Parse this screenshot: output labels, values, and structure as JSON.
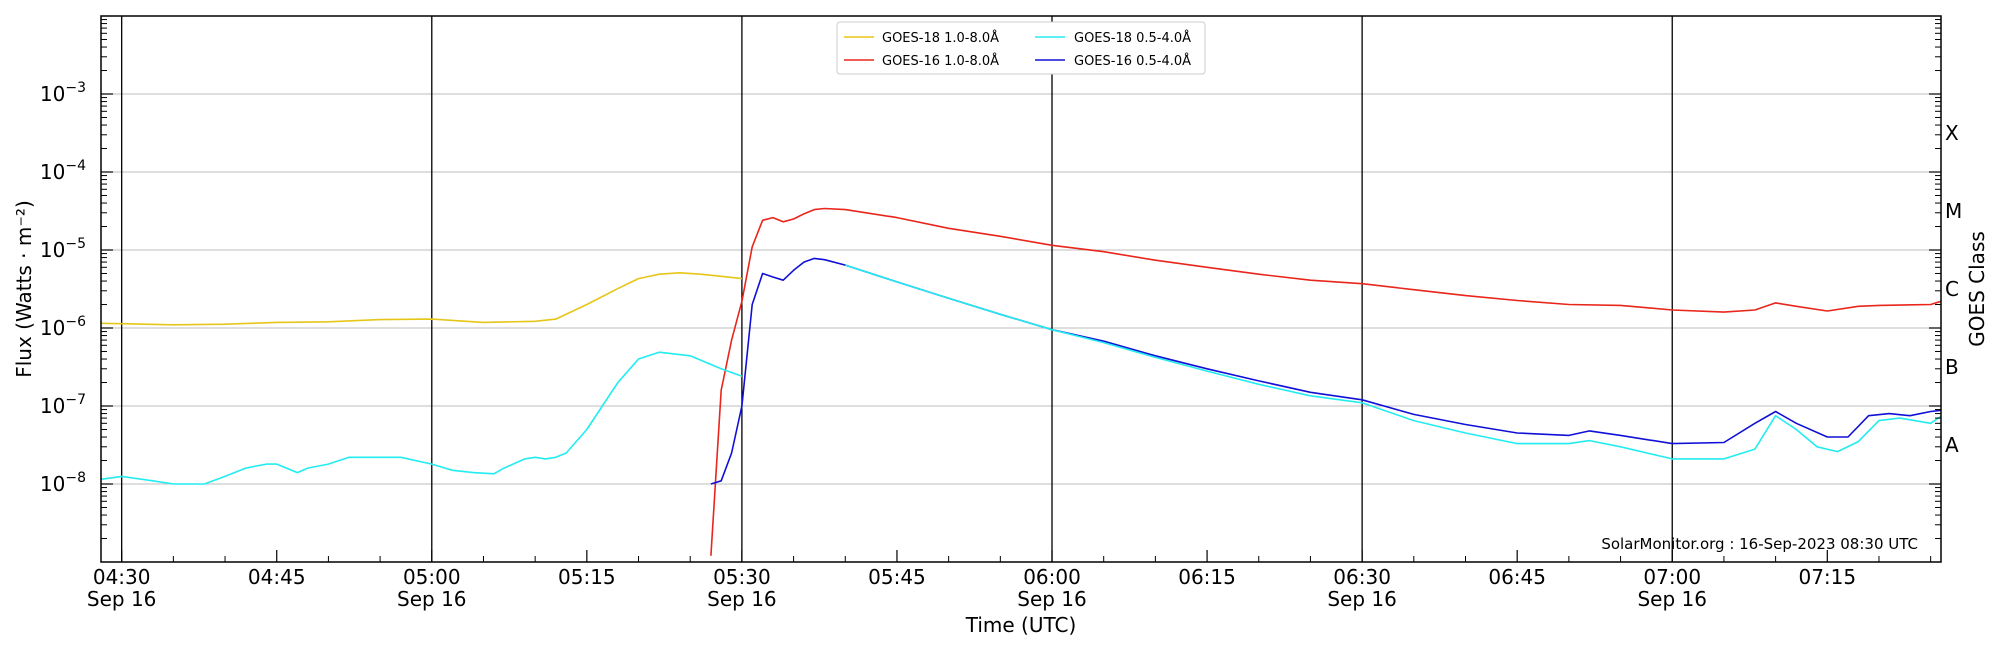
{
  "chart_data": {
    "type": "line",
    "title": "",
    "xlabel": "Time (UTC)",
    "ylabel": "Flux (Watts · m⁻²)",
    "ylabel_right": "GOES Class",
    "y_scale": "log",
    "ylim": [
      1e-09,
      0.01
    ],
    "xlim": [
      "2023-09-16T04:28",
      "2023-09-16T07:26"
    ],
    "grid": "horizontal at decades, vertical at half hours",
    "legend_position": "top-center",
    "credit": "SolarMonitor.org : 16-Sep-2023 08:30 UTC",
    "x_ticks": [
      {
        "time": "04:30",
        "date": "Sep 16"
      },
      {
        "time": "04:45",
        "date": ""
      },
      {
        "time": "05:00",
        "date": "Sep 16"
      },
      {
        "time": "05:15",
        "date": ""
      },
      {
        "time": "05:30",
        "date": "Sep 16"
      },
      {
        "time": "05:45",
        "date": ""
      },
      {
        "time": "06:00",
        "date": "Sep 16"
      },
      {
        "time": "06:15",
        "date": ""
      },
      {
        "time": "06:30",
        "date": "Sep 16"
      },
      {
        "time": "06:45",
        "date": ""
      },
      {
        "time": "07:00",
        "date": "Sep 16"
      },
      {
        "time": "07:15",
        "date": ""
      }
    ],
    "y_ticks": [
      {
        "value": 1e-08,
        "base": "10",
        "exp": "−8"
      },
      {
        "value": 1e-07,
        "base": "10",
        "exp": "−7"
      },
      {
        "value": 1e-06,
        "base": "10",
        "exp": "−6"
      },
      {
        "value": 1e-05,
        "base": "10",
        "exp": "−5"
      },
      {
        "value": 0.0001,
        "base": "10",
        "exp": "−4"
      },
      {
        "value": 0.001,
        "base": "10",
        "exp": "−3"
      }
    ],
    "goes_classes": [
      {
        "label": "A",
        "value": 3.16e-08
      },
      {
        "label": "B",
        "value": 3.16e-07
      },
      {
        "label": "C",
        "value": 3.16e-06
      },
      {
        "label": "M",
        "value": 3.16e-05
      },
      {
        "label": "X",
        "value": 0.000316
      }
    ],
    "series": [
      {
        "name": "GOES-18 1.0-8.0Å",
        "color": "#e6c619",
        "x": [
          "04:28",
          "04:35",
          "04:40",
          "04:45",
          "04:50",
          "04:55",
          "05:00",
          "05:05",
          "05:10",
          "05:12",
          "05:15",
          "05:18",
          "05:20",
          "05:22",
          "05:24",
          "05:26",
          "05:28",
          "05:30"
        ],
        "y": [
          1.15e-06,
          1.1e-06,
          1.12e-06,
          1.18e-06,
          1.2e-06,
          1.28e-06,
          1.3e-06,
          1.18e-06,
          1.22e-06,
          1.3e-06,
          2e-06,
          3.2e-06,
          4.3e-06,
          4.9e-06,
          5.1e-06,
          4.9e-06,
          4.6e-06,
          4.3e-06
        ]
      },
      {
        "name": "GOES-16 1.0-8.0Å",
        "color": "#e8261b",
        "x": [
          "05:27",
          "05:28",
          "05:29",
          "05:30",
          "05:31",
          "05:32",
          "05:33",
          "05:34",
          "05:35",
          "05:36",
          "05:37",
          "05:38",
          "05:40",
          "05:45",
          "05:50",
          "05:55",
          "06:00",
          "06:05",
          "06:10",
          "06:15",
          "06:20",
          "06:25",
          "06:30",
          "06:35",
          "06:40",
          "06:45",
          "06:50",
          "06:55",
          "07:00",
          "07:05",
          "07:08",
          "07:10",
          "07:12",
          "07:15",
          "07:18",
          "07:20",
          "07:25",
          "07:26"
        ],
        "y": [
          1.2e-09,
          1.6e-07,
          7e-07,
          2.2e-06,
          1.1e-05,
          2.4e-05,
          2.6e-05,
          2.3e-05,
          2.5e-05,
          2.9e-05,
          3.3e-05,
          3.4e-05,
          3.3e-05,
          2.6e-05,
          1.9e-05,
          1.5e-05,
          1.15e-05,
          9.5e-06,
          7.4e-06,
          6e-06,
          4.9e-06,
          4.1e-06,
          3.7e-06,
          3.1e-06,
          2.6e-06,
          2.25e-06,
          2e-06,
          1.95e-06,
          1.7e-06,
          1.6e-06,
          1.7e-06,
          2.1e-06,
          1.9e-06,
          1.65e-06,
          1.9e-06,
          1.95e-06,
          2e-06,
          2.2e-06
        ]
      },
      {
        "name": "GOES-18 0.5-4.0Å",
        "color": "#23ecf0",
        "x": [
          "04:28",
          "04:30",
          "04:33",
          "04:35",
          "04:37",
          "04:38",
          "04:40",
          "04:42",
          "04:44",
          "04:45",
          "04:47",
          "04:48",
          "04:50",
          "04:52",
          "04:55",
          "04:57",
          "05:00",
          "05:02",
          "05:04",
          "05:06",
          "05:07",
          "05:09",
          "05:10",
          "05:11",
          "05:12",
          "05:13",
          "05:15",
          "05:18",
          "05:20",
          "05:22",
          "05:25",
          "05:28",
          "05:30"
        ],
        "y": [
          1.15e-08,
          1.25e-08,
          1.1e-08,
          1e-08,
          1e-08,
          1e-08,
          1.25e-08,
          1.6e-08,
          1.8e-08,
          1.8e-08,
          1.4e-08,
          1.6e-08,
          1.8e-08,
          2.2e-08,
          2.2e-08,
          2.2e-08,
          1.8e-08,
          1.5e-08,
          1.4e-08,
          1.35e-08,
          1.6e-08,
          2.1e-08,
          2.2e-08,
          2.1e-08,
          2.2e-08,
          2.5e-08,
          5e-08,
          2e-07,
          4e-07,
          4.9e-07,
          4.4e-07,
          3e-07,
          2.4e-07
        ]
      },
      {
        "name": "GOES-16 0.5-4.0Å",
        "color": "#1010d6",
        "x": [
          "05:27",
          "05:28",
          "05:29",
          "05:30",
          "05:31",
          "05:32",
          "05:33",
          "05:34",
          "05:35",
          "05:36",
          "05:37",
          "05:38",
          "05:40",
          "05:45",
          "05:50",
          "05:55",
          "06:00",
          "06:05",
          "06:10",
          "06:15",
          "06:20",
          "06:25",
          "06:30",
          "06:35",
          "06:40",
          "06:45",
          "06:50",
          "06:52",
          "06:55",
          "07:00",
          "07:05",
          "07:08",
          "07:10",
          "07:12",
          "07:15",
          "07:17",
          "07:19",
          "07:21",
          "07:23",
          "07:25",
          "07:26"
        ],
        "y": [
          1e-08,
          1.1e-08,
          2.5e-08,
          1e-07,
          2e-06,
          5e-06,
          4.5e-06,
          4.1e-06,
          5.5e-06,
          7e-06,
          7.8e-06,
          7.5e-06,
          6.4e-06,
          3.9e-06,
          2.4e-06,
          1.5e-06,
          9.5e-07,
          6.8e-07,
          4.4e-07,
          3e-07,
          2.1e-07,
          1.5e-07,
          1.2e-07,
          7.8e-08,
          5.8e-08,
          4.5e-08,
          4.2e-08,
          4.8e-08,
          4.2e-08,
          3.3e-08,
          3.4e-08,
          6e-08,
          8.5e-08,
          6e-08,
          4e-08,
          4e-08,
          7.5e-08,
          8e-08,
          7.5e-08,
          8.5e-08,
          8.8e-08
        ]
      },
      {
        "name": "",
        "color": "#23ecf0",
        "x": [
          "05:40",
          "05:45",
          "05:50",
          "05:55",
          "06:00",
          "06:05",
          "06:10",
          "06:15",
          "06:20",
          "06:25",
          "06:30",
          "06:35",
          "06:40",
          "06:45",
          "06:50",
          "06:52",
          "06:55",
          "07:00",
          "07:05",
          "07:08",
          "07:10",
          "07:12",
          "07:14",
          "07:16",
          "07:18",
          "07:20",
          "07:22",
          "07:25",
          "07:26"
        ],
        "y": [
          6.4e-06,
          3.9e-06,
          2.4e-06,
          1.5e-06,
          9.5e-07,
          6.5e-07,
          4.2e-07,
          2.8e-07,
          1.9e-07,
          1.35e-07,
          1.1e-07,
          6.5e-08,
          4.5e-08,
          3.3e-08,
          3.3e-08,
          3.6e-08,
          3e-08,
          2.1e-08,
          2.1e-08,
          2.8e-08,
          7.5e-08,
          5e-08,
          3e-08,
          2.6e-08,
          3.5e-08,
          6.5e-08,
          7e-08,
          6e-08,
          7.4e-08
        ]
      }
    ]
  }
}
